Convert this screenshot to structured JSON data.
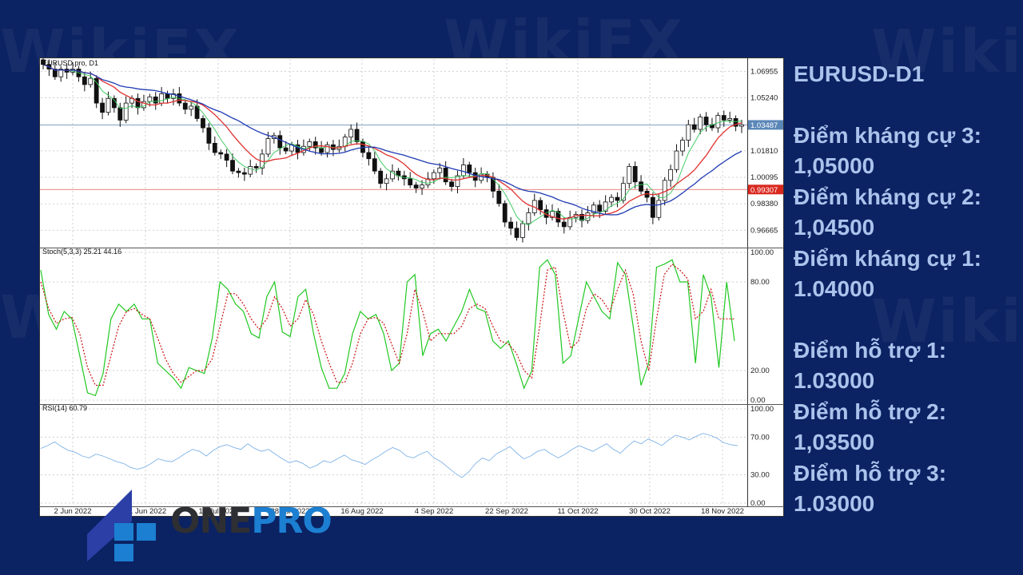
{
  "watermark": "WikiFX",
  "side_panel": {
    "title": "EURUSD-D1",
    "resistance": [
      {
        "label": "Điểm kháng cự 3:",
        "value": "1,05000"
      },
      {
        "label": "Điểm kháng cự 2:",
        "value": "1,04500"
      },
      {
        "label": "Điểm kháng cự 1:",
        "value": "1.04000"
      }
    ],
    "support": [
      {
        "label": "Điểm hỗ trợ 1:",
        "value": "1.03000"
      },
      {
        "label": "Điểm hỗ trợ 2:",
        "value": "1,03500"
      },
      {
        "label": "Điểm hỗ trợ 3:",
        "value": "1.03000"
      }
    ]
  },
  "logo": {
    "text_one": "ONE",
    "text_pro": "PRO"
  },
  "colors": {
    "background": "#0b2263",
    "ma_fast": "#34c759",
    "ma_mid": "#e0302f",
    "ma_slow": "#1f3bb3",
    "stoch_k": "#22c822",
    "stoch_d": "#cc1111",
    "rsi": "#7fb3e8",
    "current_price_line": "#6f93bd",
    "red_level_line": "#e8736f",
    "logo_blue": "#1c7fd1",
    "logo_dark": "#2e2f33"
  },
  "chart_data": [
    {
      "type": "candlestick",
      "title": "EURUSD.pro, D1",
      "y_ticks": [
        "1.06955",
        "1.05240",
        "1.01810",
        "1.00095",
        "0.98380",
        "0.96665"
      ],
      "y_tick_values": [
        1.06955,
        1.0524,
        1.0181,
        1.00095,
        0.9838,
        0.96665
      ],
      "ylim": [
        0.9555,
        1.0785
      ],
      "current_price_label": "1.03487",
      "current_price": 1.03487,
      "red_level_label": "0.99307",
      "red_level": 0.99307,
      "x_labels": [
        "2 Jun 2022",
        "21 Jun 2022",
        "10 Jul 2022",
        "28 Jul 2022",
        "16 Aug 2022",
        "4 Sep 2022",
        "22 Sep 2022",
        "11 Oct 2022",
        "30 Oct 2022",
        "18 Nov 2022"
      ],
      "closes": [
        1.074,
        1.071,
        1.066,
        1.071,
        1.069,
        1.071,
        1.066,
        1.061,
        1.065,
        1.049,
        1.043,
        1.052,
        1.046,
        1.038,
        1.049,
        1.052,
        1.046,
        1.05,
        1.053,
        1.049,
        1.055,
        1.052,
        1.055,
        1.049,
        1.045,
        1.047,
        1.039,
        1.033,
        1.023,
        1.017,
        1.016,
        1.012,
        1.005,
        1.004,
        1.003,
        1.008,
        1.007,
        1.016,
        1.026,
        1.028,
        1.02,
        1.018,
        1.022,
        1.017,
        1.021,
        1.024,
        1.02,
        1.017,
        1.022,
        1.019,
        1.021,
        1.027,
        1.032,
        1.024,
        1.017,
        1.013,
        1.005,
        0.997,
        1.0,
        1.005,
        1.002,
        1.0,
        0.996,
        0.994,
        0.996,
        1.0,
        1.004,
        1.007,
        0.998,
        0.995,
        1.002,
        1.009,
        1.004,
        0.999,
        1.003,
        1.001,
        0.992,
        0.984,
        0.972,
        0.968,
        0.962,
        0.971,
        0.978,
        0.986,
        0.98,
        0.975,
        0.979,
        0.972,
        0.969,
        0.975,
        0.977,
        0.973,
        0.978,
        0.983,
        0.979,
        0.985,
        0.988,
        0.986,
        0.997,
        1.008,
        0.998,
        0.992,
        0.988,
        0.975,
        0.986,
        0.999,
        1.006,
        1.018,
        1.025,
        1.035,
        1.032,
        1.04,
        1.035,
        1.033,
        1.041,
        1.038,
        1.039,
        1.034,
        1.035
      ]
    },
    {
      "type": "line",
      "title": "Stoch(5,3,3) 25.21 44.16",
      "y_ticks": [
        "100.00",
        "80.00",
        "20.00",
        "0.00"
      ],
      "ylim": [
        0,
        100
      ],
      "series": [
        {
          "values": [
            88,
            58,
            48,
            60,
            55,
            30,
            5,
            3,
            18,
            55,
            65,
            60,
            65,
            55,
            55,
            25,
            20,
            15,
            8,
            22,
            20,
            18,
            42,
            80,
            75,
            65,
            60,
            45,
            42,
            70,
            80,
            46,
            43,
            70,
            75,
            45,
            22,
            8,
            8,
            18,
            45,
            60,
            55,
            58,
            45,
            20,
            25,
            80,
            85,
            30,
            45,
            48,
            40,
            50,
            60,
            75,
            62,
            60,
            40,
            35,
            40,
            25,
            8,
            20,
            90,
            95,
            85,
            25,
            30,
            55,
            80,
            70,
            60,
            55,
            93,
            85,
            50,
            10,
            25,
            90,
            92,
            95,
            80,
            80,
            25,
            85,
            70,
            22,
            80,
            40
          ]
        },
        {
          "values": [
            80,
            62,
            52,
            55,
            56,
            45,
            22,
            10,
            10,
            30,
            50,
            60,
            62,
            58,
            55,
            42,
            28,
            18,
            12,
            16,
            20,
            20,
            28,
            50,
            72,
            72,
            65,
            55,
            48,
            55,
            70,
            62,
            50,
            55,
            68,
            58,
            40,
            25,
            12,
            12,
            25,
            45,
            55,
            56,
            52,
            38,
            25,
            45,
            75,
            60,
            40,
            45,
            45,
            45,
            50,
            62,
            65,
            62,
            50,
            40,
            38,
            32,
            20,
            15,
            50,
            88,
            90,
            60,
            35,
            40,
            62,
            72,
            68,
            60,
            75,
            88,
            72,
            40,
            20,
            55,
            85,
            92,
            88,
            82,
            55,
            60,
            75,
            55,
            55,
            55
          ]
        }
      ]
    },
    {
      "type": "line",
      "title": "RSI(14) 60.79",
      "y_ticks": [
        "100.00",
        "70.00",
        "30.00",
        "0.00"
      ],
      "ylim": [
        0,
        100
      ],
      "series": [
        {
          "values": [
            58,
            61,
            65,
            60,
            56,
            54,
            50,
            48,
            52,
            50,
            47,
            44,
            42,
            38,
            36,
            38,
            42,
            47,
            45,
            44,
            48,
            53,
            57,
            55,
            50,
            56,
            60,
            62,
            59,
            57,
            63,
            58,
            55,
            57,
            52,
            47,
            43,
            45,
            42,
            37,
            40,
            45,
            43,
            47,
            51,
            46,
            44,
            41,
            46,
            50,
            55,
            59,
            56,
            50,
            48,
            52,
            55,
            48,
            44,
            38,
            32,
            27,
            33,
            42,
            48,
            45,
            52,
            56,
            60,
            53,
            47,
            50,
            55,
            57,
            52,
            48,
            52,
            57,
            61,
            58,
            55,
            59,
            63,
            57,
            53,
            60,
            66,
            63,
            68,
            65,
            61,
            67,
            72,
            70,
            67,
            71,
            74,
            72,
            69,
            64,
            62,
            61
          ]
        }
      ]
    }
  ]
}
